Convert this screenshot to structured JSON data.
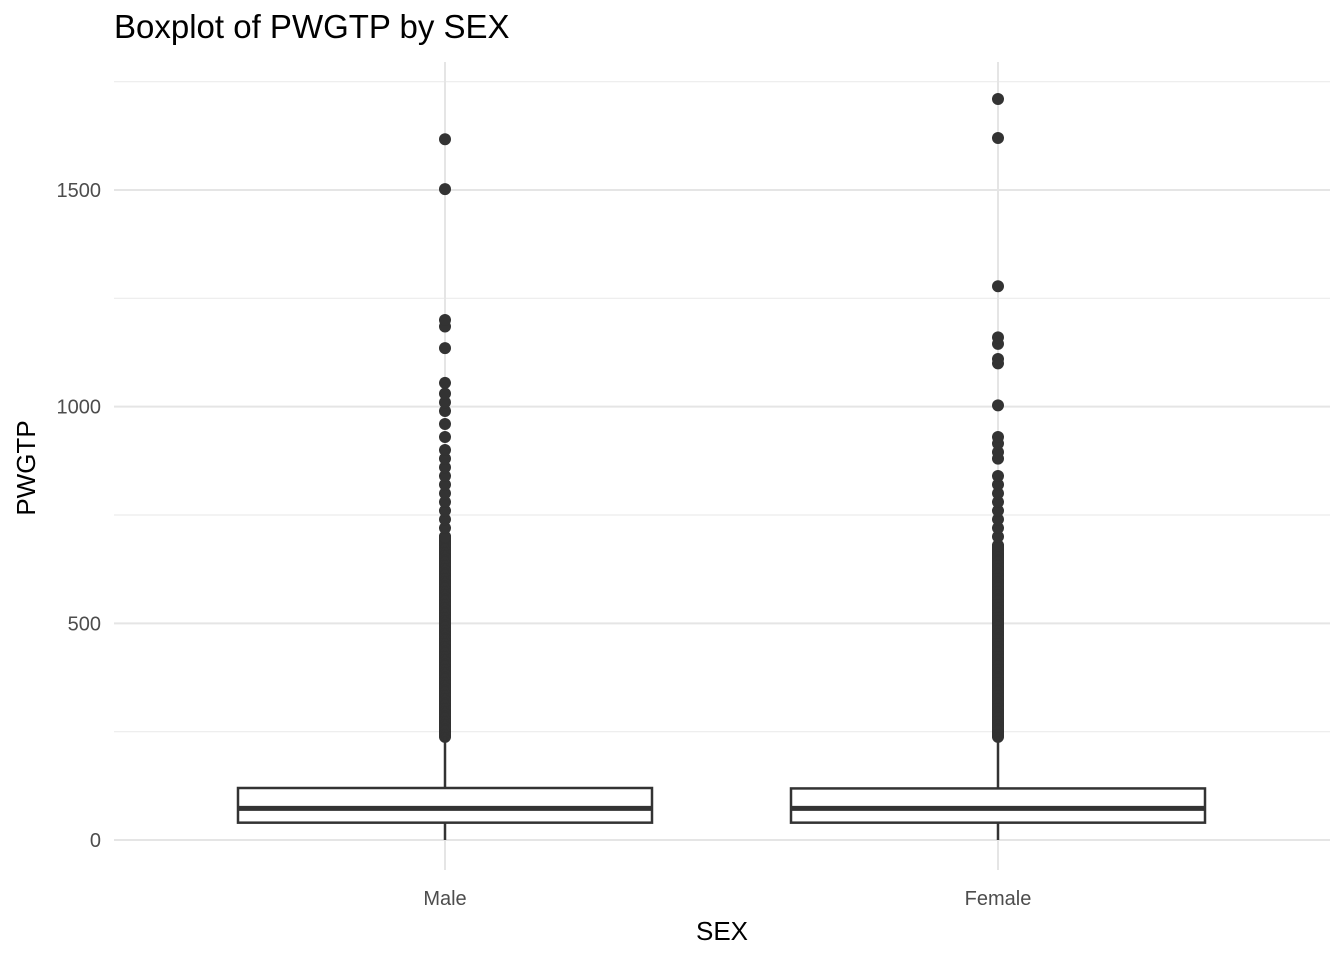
{
  "chart_data": {
    "type": "boxplot",
    "title": "Boxplot of PWGTP by SEX",
    "xlabel": "SEX",
    "ylabel": "PWGTP",
    "categories": [
      "Male",
      "Female"
    ],
    "ylim": [
      -70,
      1760
    ],
    "yticks": [
      0,
      500,
      1000,
      1500
    ],
    "ytick_labels": [
      "0",
      "500",
      "1000",
      "1500"
    ],
    "grid": true,
    "legend": "none",
    "boxes": [
      {
        "category": "Male",
        "q1": 40,
        "median": 73,
        "q3": 120,
        "whisker_low": 0,
        "whisker_high": 238,
        "outlier_dense_range": [
          238,
          700
        ],
        "outliers": [
          700,
          720,
          740,
          760,
          780,
          800,
          820,
          840,
          860,
          880,
          900,
          930,
          960,
          990,
          1010,
          1030,
          1055,
          1135,
          1185,
          1200,
          1502,
          1617
        ]
      },
      {
        "category": "Female",
        "q1": 40,
        "median": 73,
        "q3": 119,
        "whisker_low": 0,
        "whisker_high": 238,
        "outlier_dense_range": [
          238,
          680
        ],
        "outliers": [
          680,
          700,
          720,
          740,
          760,
          780,
          800,
          820,
          840,
          880,
          895,
          915,
          930,
          1003,
          1100,
          1110,
          1145,
          1160,
          1278,
          1620,
          1710
        ]
      }
    ]
  }
}
